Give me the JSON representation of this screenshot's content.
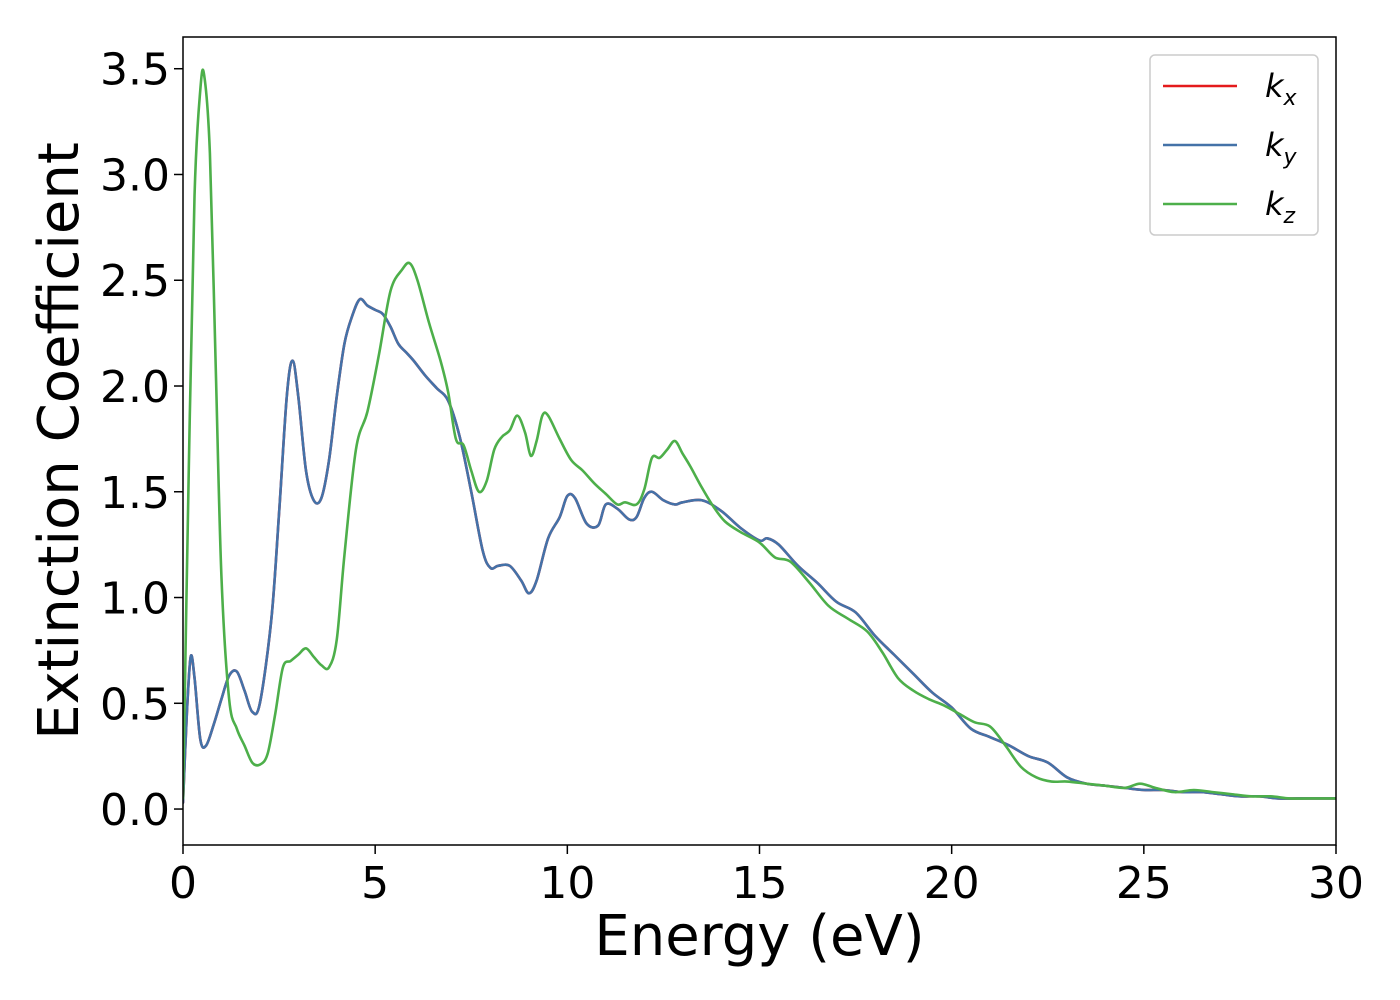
{
  "chart_data": {
    "type": "line",
    "xlabel": "Energy (eV)",
    "ylabel": "Extinction Coefficient",
    "xlim": [
      0,
      30
    ],
    "ylim": [
      -0.17,
      3.65
    ],
    "xticks": [
      0,
      5,
      10,
      15,
      20,
      25,
      30
    ],
    "xtick_labels": [
      "0",
      "5",
      "10",
      "15",
      "20",
      "25",
      "30"
    ],
    "yticks": [
      0.0,
      0.5,
      1.0,
      1.5,
      2.0,
      2.5,
      3.0,
      3.5
    ],
    "ytick_labels": [
      "0.0",
      "0.5",
      "1.0",
      "1.5",
      "2.0",
      "2.5",
      "3.0",
      "3.5"
    ],
    "grid": false,
    "legend_position": "top-right",
    "series": [
      {
        "name": "kx",
        "legend_base": "k",
        "legend_sub": "x",
        "color": "#e41a1c",
        "x": [
          0,
          0.1,
          0.2,
          0.3,
          0.45,
          0.6,
          0.8,
          1.0,
          1.2,
          1.4,
          1.6,
          1.8,
          2.0,
          2.3,
          2.5,
          2.7,
          2.85,
          3.0,
          3.2,
          3.4,
          3.6,
          3.8,
          4.0,
          4.2,
          4.4,
          4.6,
          4.8,
          5.0,
          5.2,
          5.4,
          5.6,
          5.8,
          6.0,
          6.3,
          6.6,
          6.9,
          7.2,
          7.5,
          7.8,
          8.0,
          8.2,
          8.5,
          8.8,
          9.0,
          9.2,
          9.5,
          9.8,
          10.0,
          10.2,
          10.5,
          10.8,
          11.0,
          11.3,
          11.6,
          11.8,
          12.0,
          12.2,
          12.5,
          12.8,
          13.0,
          13.5,
          14.0,
          14.5,
          15.0,
          15.2,
          15.5,
          16.0,
          16.5,
          17.0,
          17.5,
          18.0,
          18.5,
          19.0,
          19.5,
          20.0,
          20.5,
          21.0,
          21.5,
          22.0,
          22.5,
          23.0,
          23.5,
          24.0,
          24.5,
          25.0,
          25.5,
          26.0,
          26.5,
          27.0,
          27.5,
          28.0,
          28.5,
          29.0,
          29.5,
          30.0
        ],
        "y": [
          0.03,
          0.45,
          0.72,
          0.62,
          0.33,
          0.3,
          0.4,
          0.52,
          0.63,
          0.65,
          0.56,
          0.46,
          0.5,
          0.9,
          1.4,
          1.95,
          2.12,
          1.95,
          1.6,
          1.46,
          1.47,
          1.65,
          1.95,
          2.2,
          2.33,
          2.41,
          2.38,
          2.36,
          2.34,
          2.28,
          2.2,
          2.16,
          2.12,
          2.05,
          1.99,
          1.93,
          1.76,
          1.5,
          1.22,
          1.14,
          1.15,
          1.15,
          1.08,
          1.02,
          1.08,
          1.28,
          1.38,
          1.48,
          1.47,
          1.35,
          1.34,
          1.44,
          1.42,
          1.37,
          1.38,
          1.47,
          1.5,
          1.46,
          1.44,
          1.45,
          1.46,
          1.41,
          1.33,
          1.27,
          1.28,
          1.25,
          1.15,
          1.07,
          0.98,
          0.93,
          0.82,
          0.73,
          0.64,
          0.55,
          0.48,
          0.38,
          0.34,
          0.3,
          0.25,
          0.22,
          0.15,
          0.12,
          0.11,
          0.1,
          0.09,
          0.09,
          0.08,
          0.08,
          0.07,
          0.06,
          0.06,
          0.05,
          0.05,
          0.05,
          0.05
        ]
      },
      {
        "name": "ky",
        "legend_base": "k",
        "legend_sub": "y",
        "color": "#4472a8",
        "x": [
          0,
          0.1,
          0.2,
          0.3,
          0.45,
          0.6,
          0.8,
          1.0,
          1.2,
          1.4,
          1.6,
          1.8,
          2.0,
          2.3,
          2.5,
          2.7,
          2.85,
          3.0,
          3.2,
          3.4,
          3.6,
          3.8,
          4.0,
          4.2,
          4.4,
          4.6,
          4.8,
          5.0,
          5.2,
          5.4,
          5.6,
          5.8,
          6.0,
          6.3,
          6.6,
          6.9,
          7.2,
          7.5,
          7.8,
          8.0,
          8.2,
          8.5,
          8.8,
          9.0,
          9.2,
          9.5,
          9.8,
          10.0,
          10.2,
          10.5,
          10.8,
          11.0,
          11.3,
          11.6,
          11.8,
          12.0,
          12.2,
          12.5,
          12.8,
          13.0,
          13.5,
          14.0,
          14.5,
          15.0,
          15.2,
          15.5,
          16.0,
          16.5,
          17.0,
          17.5,
          18.0,
          18.5,
          19.0,
          19.5,
          20.0,
          20.5,
          21.0,
          21.5,
          22.0,
          22.5,
          23.0,
          23.5,
          24.0,
          24.5,
          25.0,
          25.5,
          26.0,
          26.5,
          27.0,
          27.5,
          28.0,
          28.5,
          29.0,
          29.5,
          30.0
        ],
        "y": [
          0.03,
          0.45,
          0.72,
          0.62,
          0.33,
          0.3,
          0.4,
          0.52,
          0.63,
          0.65,
          0.56,
          0.46,
          0.5,
          0.9,
          1.4,
          1.95,
          2.12,
          1.95,
          1.6,
          1.46,
          1.47,
          1.65,
          1.95,
          2.2,
          2.33,
          2.41,
          2.38,
          2.36,
          2.34,
          2.28,
          2.2,
          2.16,
          2.12,
          2.05,
          1.99,
          1.93,
          1.76,
          1.5,
          1.22,
          1.14,
          1.15,
          1.15,
          1.08,
          1.02,
          1.08,
          1.28,
          1.38,
          1.48,
          1.47,
          1.35,
          1.34,
          1.44,
          1.42,
          1.37,
          1.38,
          1.47,
          1.5,
          1.46,
          1.44,
          1.45,
          1.46,
          1.41,
          1.33,
          1.27,
          1.28,
          1.25,
          1.15,
          1.07,
          0.98,
          0.93,
          0.82,
          0.73,
          0.64,
          0.55,
          0.48,
          0.38,
          0.34,
          0.3,
          0.25,
          0.22,
          0.15,
          0.12,
          0.11,
          0.1,
          0.09,
          0.09,
          0.08,
          0.08,
          0.07,
          0.06,
          0.06,
          0.05,
          0.05,
          0.05,
          0.05
        ]
      },
      {
        "name": "kz",
        "legend_base": "k",
        "legend_sub": "z",
        "color": "#4daf4a",
        "x": [
          0,
          0.15,
          0.3,
          0.45,
          0.55,
          0.7,
          0.85,
          1.0,
          1.2,
          1.4,
          1.6,
          1.8,
          2.0,
          2.2,
          2.4,
          2.6,
          2.8,
          3.0,
          3.2,
          3.4,
          3.6,
          3.8,
          4.0,
          4.2,
          4.5,
          4.8,
          5.1,
          5.4,
          5.7,
          5.9,
          6.1,
          6.4,
          6.7,
          6.9,
          7.1,
          7.3,
          7.5,
          7.7,
          7.9,
          8.1,
          8.3,
          8.5,
          8.7,
          8.9,
          9.05,
          9.2,
          9.35,
          9.5,
          9.8,
          10.1,
          10.4,
          10.7,
          11.0,
          11.3,
          11.5,
          11.8,
          12.0,
          12.2,
          12.4,
          12.6,
          12.8,
          13.0,
          13.2,
          13.5,
          13.8,
          14.1,
          14.5,
          15.0,
          15.4,
          15.8,
          16.3,
          16.8,
          17.3,
          17.8,
          18.2,
          18.6,
          19.0,
          19.4,
          19.8,
          20.2,
          20.6,
          21.0,
          21.4,
          21.8,
          22.2,
          22.6,
          23.0,
          23.5,
          24.0,
          24.5,
          24.9,
          25.3,
          25.8,
          26.3,
          26.8,
          27.3,
          27.8,
          28.3,
          28.8,
          29.3,
          30.0
        ],
        "y": [
          0.05,
          1.6,
          2.9,
          3.4,
          3.47,
          3.1,
          2.1,
          1.1,
          0.52,
          0.38,
          0.3,
          0.22,
          0.21,
          0.26,
          0.45,
          0.67,
          0.7,
          0.73,
          0.76,
          0.72,
          0.68,
          0.67,
          0.8,
          1.2,
          1.7,
          1.88,
          2.15,
          2.45,
          2.55,
          2.58,
          2.5,
          2.3,
          2.12,
          1.97,
          1.75,
          1.72,
          1.6,
          1.5,
          1.55,
          1.7,
          1.76,
          1.79,
          1.86,
          1.78,
          1.67,
          1.74,
          1.86,
          1.86,
          1.75,
          1.65,
          1.6,
          1.54,
          1.49,
          1.44,
          1.45,
          1.44,
          1.51,
          1.66,
          1.66,
          1.7,
          1.74,
          1.68,
          1.62,
          1.52,
          1.43,
          1.36,
          1.31,
          1.26,
          1.19,
          1.17,
          1.07,
          0.96,
          0.9,
          0.84,
          0.74,
          0.62,
          0.56,
          0.52,
          0.49,
          0.45,
          0.41,
          0.39,
          0.3,
          0.2,
          0.15,
          0.13,
          0.13,
          0.12,
          0.11,
          0.1,
          0.12,
          0.1,
          0.08,
          0.09,
          0.08,
          0.07,
          0.06,
          0.06,
          0.05,
          0.05,
          0.05
        ]
      }
    ]
  }
}
